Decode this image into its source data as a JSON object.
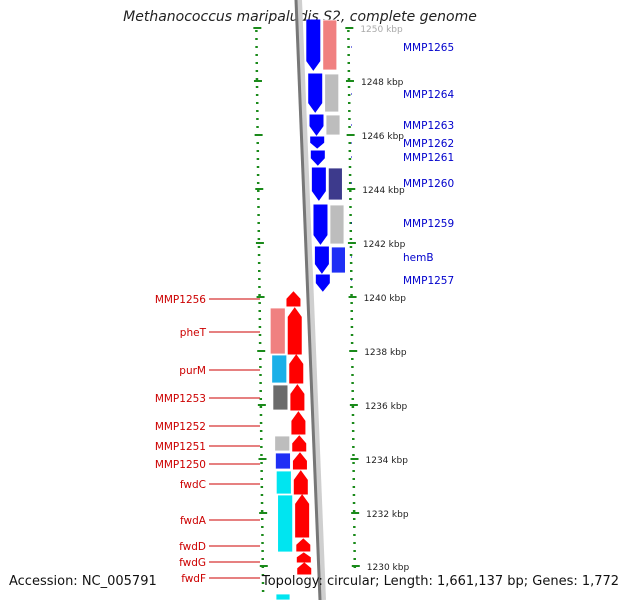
{
  "title": "Methanococcus maripaludis S2, complete genome",
  "footer": {
    "accession": "Accession: NC_005791",
    "topology": "Topology: circular; Length: 1,661,137 bp; Genes: 1,772"
  },
  "colors": {
    "forward_strand": "#0000ff",
    "reverse_strand": "#ff0000",
    "forward_label": "#0000cc",
    "reverse_label": "#cc0000",
    "backbone": "#777777",
    "tick_dots": "#1a8a1a"
  },
  "position_ticks": [
    {
      "kbp": 1250,
      "label": "1250 kbp"
    },
    {
      "kbp": 1248,
      "label": "1248 kbp"
    },
    {
      "kbp": 1246,
      "label": "1246 kbp"
    },
    {
      "kbp": 1244,
      "label": "1244 kbp"
    },
    {
      "kbp": 1242,
      "label": "1242 kbp"
    },
    {
      "kbp": 1240,
      "label": "1240 kbp"
    },
    {
      "kbp": 1238,
      "label": "1238 kbp"
    },
    {
      "kbp": 1236,
      "label": "1236 kbp"
    },
    {
      "kbp": 1234,
      "label": "1234 kbp"
    },
    {
      "kbp": 1232,
      "label": "1232 kbp"
    },
    {
      "kbp": 1230,
      "label": "1230 kbp"
    }
  ],
  "forward_genes": [
    {
      "name": "MMP1265",
      "cog_color": "#f08080"
    },
    {
      "name": "MMP1264",
      "cog_color": "#bdbdbd"
    },
    {
      "name": "MMP1263",
      "cog_color": "#bdbdbd"
    },
    {
      "name": "MMP1262",
      "cog_color": ""
    },
    {
      "name": "MMP1261",
      "cog_color": ""
    },
    {
      "name": "MMP1260",
      "cog_color": "#3d3a8c"
    },
    {
      "name": "MMP1259",
      "cog_color": "#bdbdbd"
    },
    {
      "name": "hemB",
      "cog_color": "#1f2ff5"
    },
    {
      "name": "MMP1257",
      "cog_color": ""
    }
  ],
  "reverse_genes": [
    {
      "name": "MMP1256",
      "cog_color": ""
    },
    {
      "name": "pheT",
      "cog_color": "#f08080"
    },
    {
      "name": "purM",
      "cog_color": "#1ab0e8"
    },
    {
      "name": "MMP1253",
      "cog_color": "#6b6b6b"
    },
    {
      "name": "MMP1252",
      "cog_color": ""
    },
    {
      "name": "MMP1251",
      "cog_color": "#bdbdbd"
    },
    {
      "name": "MMP1250",
      "cog_color": "#1f2ff5"
    },
    {
      "name": "fwdC",
      "cog_color": "#00e5f0"
    },
    {
      "name": "fwdA",
      "cog_color": "#00e5f0"
    },
    {
      "name": "fwdD",
      "cog_color": "#00e5f0"
    },
    {
      "name": "fwdG",
      "cog_color": "#00e5f0"
    },
    {
      "name": "fwdF",
      "cog_color": "#00e5f0"
    }
  ]
}
